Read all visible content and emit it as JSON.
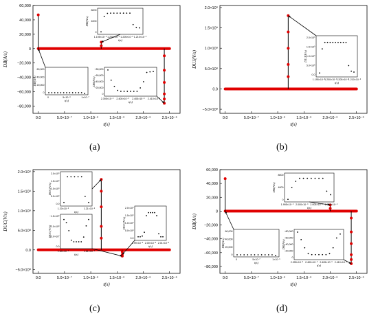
{
  "figure": {
    "panel_labels": [
      "(a)",
      "(b)",
      "(c)",
      "(d)"
    ],
    "marker_color": "#e00000",
    "inset_marker_color": "#000000"
  },
  "chart_data": [
    {
      "panel": "(a)",
      "type": "scatter",
      "xlabel": "t(s)",
      "ylabel": "DB(A/s)",
      "xlim": [
        -1e-07,
        2.7e-06
      ],
      "ylim": [
        -90000,
        60000
      ],
      "x_ticks": [
        0,
        5e-07,
        1e-06,
        1.5e-06,
        2e-06,
        2.5e-06
      ],
      "x_tick_labels": [
        "0.0",
        "5.0×10⁻⁷",
        "1.0×10⁻⁶",
        "1.5×10⁻⁶",
        "2.0×10⁻⁶",
        "2.5×10⁻⁶"
      ],
      "y_ticks": [
        -80000,
        -60000,
        -40000,
        -20000,
        0,
        20000,
        40000,
        60000
      ],
      "y_tick_labels": [
        "−80,000",
        "−60,000",
        "−40,000",
        "−20,000",
        "0",
        "20,000",
        "40,000",
        "60,000"
      ],
      "baseline_y": 0,
      "spikes": [
        {
          "x": 0,
          "values": [
            47000
          ]
        },
        {
          "x": 1.2e-06,
          "values": [
            4000,
            9000
          ]
        },
        {
          "x": 2.4e-06,
          "values": [
            -10000,
            -30000,
            -47000,
            -63000,
            -70000,
            -76000
          ]
        }
      ],
      "insets": [
        {
          "ylabel": "DB(A/s)",
          "xlabel": "t(s)",
          "x_tick_labels": [
            "1.195×10⁻⁶",
            "1.200×10⁻⁶",
            "1.205×10⁻⁶",
            "1.210×10⁻⁶"
          ],
          "y_tick_labels": [
            "0",
            "4000",
            "8000"
          ],
          "ylim": [
            0,
            10000
          ],
          "values": [
            200,
            7200,
            8600,
            8700,
            8700,
            8700,
            8700,
            8700,
            8700,
            8700,
            3500,
            2100,
            2000
          ]
        },
        {
          "ylabel": "DB(A/s)",
          "xlabel": "t(s)",
          "x_tick_labels": [
            "0",
            "5×10⁻⁸",
            "1×10⁻⁷"
          ],
          "y_tick_labels": [
            "0",
            "20,000",
            "40,000",
            "60,000"
          ],
          "ylim": [
            0,
            60000
          ],
          "values": [
            0,
            0,
            0,
            0,
            0,
            0,
            0,
            0,
            0,
            0,
            0,
            0,
            -20000
          ]
        },
        {
          "ylabel": "DB(A/s)",
          "xlabel": "t(s)",
          "x_tick_labels": [
            "2.395×10⁻⁶",
            "2.400×10⁻⁶",
            "2.405×10⁻⁶",
            "2.410×10⁻⁶"
          ],
          "y_tick_labels": [
            "0",
            "−20,000",
            "−40,000",
            "−60,000",
            "−80,000"
          ],
          "ylim": [
            -80000,
            0
          ],
          "values": [
            -2000,
            -35000,
            -55000,
            -68000,
            -71000,
            -71000,
            -71000,
            -71000,
            -71000,
            -71000,
            -60000,
            -40000,
            -10000,
            -8000,
            -7000
          ]
        }
      ]
    },
    {
      "panel": "(b)",
      "type": "scatter",
      "xlabel": "t(s)",
      "ylabel": "DUJ(V/s)",
      "xlim": [
        -1e-07,
        2.7e-06
      ],
      "ylim": [
        -600000000.0,
        2050000000.0
      ],
      "x_ticks": [
        0,
        5e-07,
        1e-06,
        1.5e-06,
        2e-06,
        2.5e-06
      ],
      "x_tick_labels": [
        "0.0",
        "5.0×10⁻⁷",
        "1.0×10⁻⁶",
        "1.5×10⁻⁶",
        "2.0×10⁻⁶",
        "2.5×10⁻⁶"
      ],
      "y_ticks": [
        -500000000.0,
        0,
        500000000.0,
        1000000000.0,
        1500000000.0,
        2000000000.0
      ],
      "y_tick_labels": [
        "−5.0×10⁸",
        "0.0",
        "5.0×10⁸",
        "1.0×10⁹",
        "1.5×10⁹",
        "2.0×10⁹"
      ],
      "baseline_y": 0,
      "spikes": [
        {
          "x": 1.2e-06,
          "values": [
            1800000000.0,
            1400000000.0,
            1000000000.0,
            600000000.0,
            300000000.0
          ]
        }
      ],
      "insets": [
        {
          "ylabel": "DUJ(V/s)",
          "xlabel": "t(s)",
          "x_tick_labels": [
            "1.195×10⁻⁶",
            "1.200×10⁻⁶",
            "1.205×10⁻⁶",
            "1.210×10⁻⁶"
          ],
          "y_tick_labels": [
            "0.0",
            "5.0×10⁸",
            "1.0×10⁹",
            "1.5×10⁹",
            "2.0×10⁹"
          ],
          "ylim": [
            0,
            2000000000.0
          ],
          "values": [
            100000000.0,
            1400000000.0,
            1750000000.0,
            1750000000.0,
            1750000000.0,
            1750000000.0,
            1750000000.0,
            1750000000.0,
            1750000000.0,
            1750000000.0,
            1750000000.0,
            500000000.0,
            200000000.0,
            150000000.0
          ]
        }
      ]
    },
    {
      "panel": "(c)",
      "type": "scatter",
      "xlabel": "t(s)",
      "ylabel": "DUC(V/s)",
      "xlim": [
        -1e-07,
        2.7e-06
      ],
      "ylim": [
        -600000000.0,
        2050000000.0
      ],
      "x_ticks": [
        0,
        5e-07,
        1e-06,
        1.5e-06,
        2e-06,
        2.5e-06
      ],
      "x_tick_labels": [
        "0.0",
        "5.0×10⁻⁷",
        "1.0×10⁻⁶",
        "1.5×10⁻⁶",
        "2.0×10⁻⁶",
        "2.5×10⁻⁶"
      ],
      "y_ticks": [
        -500000000.0,
        0,
        500000000.0,
        1000000000.0,
        1500000000.0,
        2000000000.0
      ],
      "y_tick_labels": [
        "−5.0×10⁸",
        "0.0",
        "5.0×10⁸",
        "1.0×10⁹",
        "1.5×10⁹",
        "2.0×10⁹"
      ],
      "baseline_y": 0,
      "spikes": [
        {
          "x": 1.2e-06,
          "values": [
            1800000000.0,
            1500000000.0,
            1100000000.0,
            600000000.0,
            300000000.0
          ]
        },
        {
          "x": 1.6e-06,
          "values": [
            -50000000.0,
            -120000000.0,
            -160000000.0
          ]
        }
      ],
      "insets": [
        {
          "ylabel": "DUC(V/s)",
          "xlabel": "t(s)",
          "x_tick_labels": [
            "1.20×10⁻⁶",
            "1.21×10⁻⁶"
          ],
          "y_tick_labels": [
            "0.0",
            "5.0×10⁸",
            "1.0×10⁹",
            "1.5×10⁹",
            "2.0×10⁹"
          ],
          "ylim": [
            0,
            2000000000.0
          ],
          "values": [
            100000000.0,
            1800000000.0,
            1800000000.0,
            1800000000.0,
            1800000000.0,
            1800000000.0,
            500000000.0,
            100000000.0
          ]
        },
        {
          "ylabel": "DUC(V/s)",
          "xlabel": "t(s)",
          "x_tick_labels": [
            "1.60×10⁻⁶",
            "1.61×10⁻⁶"
          ],
          "y_tick_labels": [
            "0.0",
            "−5.0×10⁷",
            "−1.0×10⁸",
            "−1.5×10⁸"
          ],
          "ylim": [
            -170000000.0,
            20000000.0
          ],
          "values": [
            0,
            -20000000.0,
            -70000000.0,
            -130000000.0,
            -140000000.0,
            -140000000.0,
            -140000000.0,
            -140000000.0,
            -110000000.0,
            -40000000.0,
            0
          ]
        },
        {
          "ylabel": "DUC(V/s)",
          "xlabel": "t(s)",
          "x_tick_labels": [
            "1.99×10⁻⁶",
            "2.00×10⁻⁶",
            "2.01×10⁻⁶"
          ],
          "y_tick_labels": [
            "0.0",
            "5.0×10⁸",
            "1.0×10⁹",
            "1.5×10⁹",
            "2.0×10⁹"
          ],
          "ylim": [
            0,
            2000000000.0
          ],
          "values": [
            100000000.0,
            100000000.0,
            150000000.0,
            400000000.0,
            1500000000.0,
            1700000000.0,
            1700000000.0,
            1700000000.0,
            1700000000.0,
            1500000000.0,
            300000000.0,
            100000000.0,
            100000000.0
          ]
        }
      ]
    },
    {
      "panel": "(d)",
      "type": "scatter",
      "xlabel": "t(s)",
      "ylabel": "DB(A/s)",
      "xlim": [
        -1e-07,
        2.7e-06
      ],
      "ylim": [
        -90000,
        60000
      ],
      "x_ticks": [
        0,
        5e-07,
        1e-06,
        1.5e-06,
        2e-06,
        2.5e-06
      ],
      "x_tick_labels": [
        "0.0",
        "5.0×10⁻⁷",
        "1.0×10⁻⁶",
        "1.5×10⁻⁶",
        "2.0×10⁻⁶",
        "2.5×10⁻⁶"
      ],
      "y_ticks": [
        -80000,
        -60000,
        -40000,
        -20000,
        0,
        20000,
        40000,
        60000
      ],
      "y_tick_labels": [
        "−80,000",
        "−60,000",
        "−40,000",
        "−20,000",
        "0",
        "20,000",
        "40,000",
        "60,000"
      ],
      "baseline_y": 0,
      "spikes": [
        {
          "x": 0,
          "values": [
            47000
          ]
        },
        {
          "x": 2e-06,
          "values": [
            4000,
            9000
          ]
        },
        {
          "x": 2.4e-06,
          "values": [
            -10000,
            -30000,
            -47000,
            -63000,
            -70000,
            -76000
          ]
        }
      ],
      "insets": [
        {
          "ylabel": "DB(A/s)",
          "xlabel": "t(s)",
          "x_tick_labels": [
            "1.995×10⁻⁶",
            "2.000×10⁻⁶",
            "2.005×10⁻⁶",
            "2.010×10⁻⁶"
          ],
          "y_tick_labels": [
            "0",
            "4000",
            "8000"
          ],
          "ylim": [
            0,
            10000
          ],
          "values": [
            200,
            5000,
            7500,
            8700,
            8700,
            8700,
            8700,
            8700,
            8700,
            8700,
            3500,
            2100
          ]
        },
        {
          "ylabel": "DB(A/s)",
          "xlabel": "t(s)",
          "x_tick_labels": [
            "0",
            "5×10⁻⁷",
            "1×10⁻⁶"
          ],
          "y_tick_labels": [
            "0",
            "20,000",
            "40,000",
            "60,000"
          ],
          "ylim": [
            0,
            60000
          ],
          "values": [
            0,
            0,
            0,
            0,
            0,
            0,
            0,
            0,
            0,
            0,
            0,
            -20000
          ]
        },
        {
          "ylabel": "DB(A/s)",
          "xlabel": "t(s)",
          "x_tick_labels": [
            "2.395×10⁻⁶",
            "2.400×10⁻⁶",
            "2.405×10⁻⁶",
            "2.410×10⁻⁶"
          ],
          "y_tick_labels": [
            "0",
            "−20,000",
            "−40,000",
            "−60,000",
            "−80,000"
          ],
          "ylim": [
            -80000,
            0
          ],
          "values": [
            -2000,
            -25000,
            -50000,
            -68000,
            -71000,
            -71000,
            -71000,
            -71000,
            -71000,
            -68000,
            -50000,
            -20000,
            -8000
          ]
        }
      ]
    }
  ]
}
